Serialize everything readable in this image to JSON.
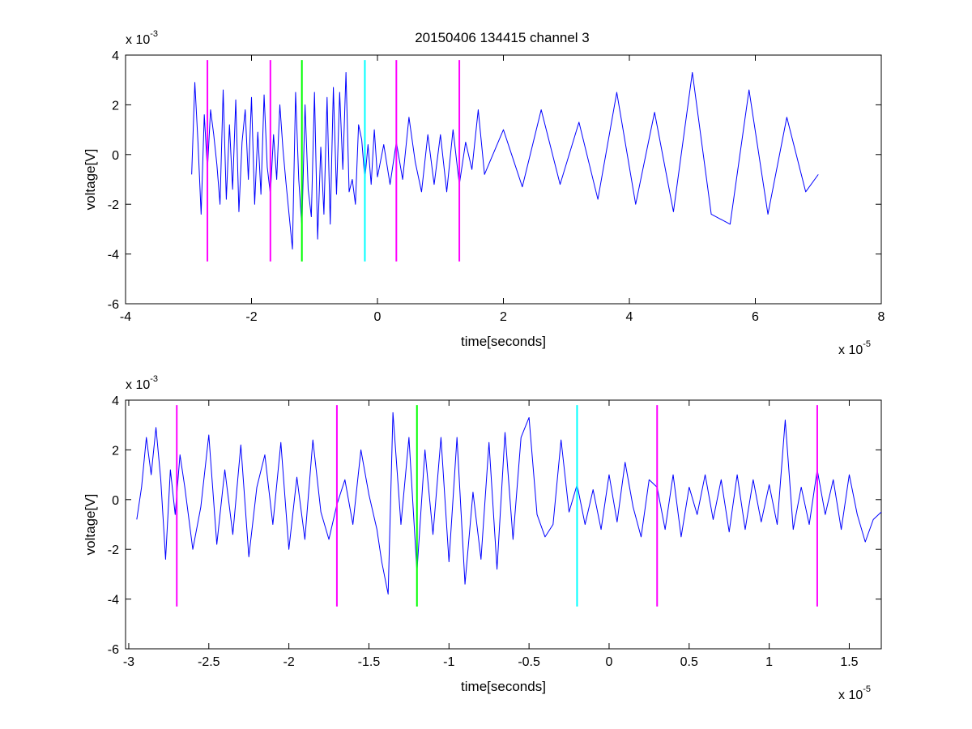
{
  "figure": {
    "title": "20150406 134415 channel 3"
  },
  "chart_data": [
    {
      "type": "line",
      "title": "20150406 134415 channel 3",
      "xlabel": "time[seconds]",
      "ylabel": "voltage[V]",
      "x_exponent_label": "x 10",
      "x_exponent": "-5",
      "y_exponent_label": "x 10",
      "y_exponent": "-3",
      "xlim": [
        -4,
        8
      ],
      "ylim": [
        -6,
        4
      ],
      "xticks": [
        -4,
        -2,
        0,
        2,
        4,
        6,
        8
      ],
      "yticks": [
        -6,
        -4,
        -2,
        0,
        2,
        4
      ],
      "xtick_labels": [
        "-4",
        "-2",
        "0",
        "2",
        "4",
        "6",
        "8"
      ],
      "ytick_labels": [
        "-6",
        "-4",
        "-2",
        "0",
        "2",
        "4"
      ],
      "grid": false,
      "series": [
        {
          "color": "#0000ff",
          "x": [
            -2.95,
            -2.9,
            -2.85,
            -2.8,
            -2.75,
            -2.7,
            -2.65,
            -2.6,
            -2.55,
            -2.5,
            -2.45,
            -2.4,
            -2.35,
            -2.3,
            -2.25,
            -2.2,
            -2.15,
            -2.1,
            -2.05,
            -2.0,
            -1.95,
            -1.9,
            -1.85,
            -1.8,
            -1.75,
            -1.7,
            -1.65,
            -1.6,
            -1.55,
            -1.5,
            -1.45,
            -1.4,
            -1.35,
            -1.3,
            -1.25,
            -1.2,
            -1.15,
            -1.1,
            -1.05,
            -1.0,
            -0.95,
            -0.9,
            -0.85,
            -0.8,
            -0.75,
            -0.7,
            -0.65,
            -0.6,
            -0.55,
            -0.5,
            -0.45,
            -0.4,
            -0.35,
            -0.3,
            -0.25,
            -0.2,
            -0.15,
            -0.1,
            -0.05,
            0.0,
            0.1,
            0.2,
            0.3,
            0.4,
            0.5,
            0.6,
            0.7,
            0.8,
            0.9,
            1.0,
            1.1,
            1.2,
            1.3,
            1.4,
            1.5,
            1.6,
            1.7,
            2.0,
            2.3,
            2.6,
            2.9,
            3.2,
            3.5,
            3.8,
            4.1,
            4.4,
            4.7,
            5.0,
            5.3,
            5.6,
            5.9,
            6.2,
            6.5,
            6.8,
            7.0
          ],
          "y": [
            -0.8,
            2.9,
            0.5,
            -2.4,
            1.6,
            -0.6,
            1.8,
            0.8,
            -0.4,
            -2.0,
            2.6,
            -1.8,
            1.2,
            -1.4,
            2.2,
            -2.3,
            0.5,
            1.8,
            -1.0,
            2.3,
            -2.0,
            0.9,
            -1.6,
            2.4,
            -0.5,
            -1.6,
            0.8,
            -1.0,
            2.0,
            0.2,
            -1.2,
            -2.5,
            -3.8,
            2.5,
            -1.0,
            -2.9,
            2.0,
            -1.4,
            -2.5,
            2.5,
            -3.4,
            0.3,
            -2.4,
            2.3,
            -2.8,
            2.7,
            -1.6,
            2.5,
            -0.6,
            3.3,
            -1.5,
            -1.0,
            -2.0,
            1.2,
            0.6,
            -1.0,
            0.4,
            -1.2,
            1.0,
            -0.9,
            0.4,
            -1.2,
            0.5,
            -1.0,
            1.5,
            -0.3,
            -1.5,
            0.8,
            -1.2,
            0.8,
            -1.5,
            1.0,
            -1.2,
            0.5,
            -0.6,
            1.8,
            -0.8,
            1.0,
            -1.3,
            1.8,
            -1.2,
            1.3,
            -1.8,
            2.5,
            -2.0,
            1.7,
            -2.3,
            3.3,
            -2.4,
            -2.8,
            2.6,
            -2.4,
            1.5,
            -1.5,
            -0.8
          ]
        },
        {
          "color": "#ff00ff",
          "x": [
            -2.7,
            -2.7
          ],
          "y": [
            -4.3,
            3.8
          ]
        },
        {
          "color": "#ff00ff",
          "x": [
            -1.7,
            -1.7
          ],
          "y": [
            -4.3,
            3.8
          ]
        },
        {
          "color": "#00ff00",
          "x": [
            -1.2,
            -1.2
          ],
          "y": [
            -4.3,
            3.8
          ]
        },
        {
          "color": "#00ffff",
          "x": [
            -0.2,
            -0.2
          ],
          "y": [
            -4.3,
            3.8
          ]
        },
        {
          "color": "#ff00ff",
          "x": [
            0.3,
            0.3
          ],
          "y": [
            -4.3,
            3.8
          ]
        },
        {
          "color": "#ff00ff",
          "x": [
            1.3,
            1.3
          ],
          "y": [
            -4.3,
            3.8
          ]
        }
      ]
    },
    {
      "type": "line",
      "title": "",
      "xlabel": "time[seconds]",
      "ylabel": "voltage[V]",
      "x_exponent_label": "x 10",
      "x_exponent": "-5",
      "y_exponent_label": "x 10",
      "y_exponent": "-3",
      "xlim": [
        -3.02,
        1.7
      ],
      "ylim": [
        -6,
        4
      ],
      "xticks": [
        -3,
        -2.5,
        -2,
        -1.5,
        -1,
        -0.5,
        0,
        0.5,
        1,
        1.5
      ],
      "yticks": [
        -6,
        -4,
        -2,
        0,
        2,
        4
      ],
      "xtick_labels": [
        "-3",
        "-2.5",
        "-2",
        "-1.5",
        "-1",
        "-0.5",
        "0",
        "0.5",
        "1",
        "1.5"
      ],
      "ytick_labels": [
        "-6",
        "-4",
        "-2",
        "0",
        "2",
        "4"
      ],
      "grid": false,
      "series": [
        {
          "color": "#0000ff",
          "x": [
            -2.95,
            -2.92,
            -2.89,
            -2.86,
            -2.83,
            -2.8,
            -2.77,
            -2.74,
            -2.71,
            -2.68,
            -2.65,
            -2.6,
            -2.55,
            -2.5,
            -2.45,
            -2.4,
            -2.35,
            -2.3,
            -2.25,
            -2.2,
            -2.15,
            -2.1,
            -2.05,
            -2.0,
            -1.95,
            -1.9,
            -1.85,
            -1.8,
            -1.75,
            -1.7,
            -1.65,
            -1.6,
            -1.55,
            -1.5,
            -1.45,
            -1.42,
            -1.38,
            -1.35,
            -1.3,
            -1.25,
            -1.2,
            -1.15,
            -1.1,
            -1.05,
            -1.0,
            -0.95,
            -0.9,
            -0.85,
            -0.8,
            -0.75,
            -0.7,
            -0.65,
            -0.6,
            -0.55,
            -0.5,
            -0.45,
            -0.4,
            -0.35,
            -0.3,
            -0.25,
            -0.2,
            -0.15,
            -0.1,
            -0.05,
            0.0,
            0.05,
            0.1,
            0.15,
            0.2,
            0.25,
            0.3,
            0.35,
            0.4,
            0.45,
            0.5,
            0.55,
            0.6,
            0.65,
            0.7,
            0.75,
            0.8,
            0.85,
            0.9,
            0.95,
            1.0,
            1.05,
            1.1,
            1.15,
            1.2,
            1.25,
            1.3,
            1.35,
            1.4,
            1.45,
            1.5,
            1.55,
            1.6,
            1.65,
            1.7
          ],
          "y": [
            -0.8,
            0.5,
            2.5,
            1.0,
            2.9,
            0.8,
            -2.4,
            1.2,
            -0.6,
            1.8,
            0.5,
            -2.0,
            -0.3,
            2.6,
            -1.8,
            1.2,
            -1.4,
            2.2,
            -2.3,
            0.5,
            1.8,
            -1.0,
            2.3,
            -2.0,
            0.9,
            -1.6,
            2.4,
            -0.5,
            -1.6,
            -0.2,
            0.8,
            -1.0,
            2.0,
            0.2,
            -1.2,
            -2.5,
            -3.8,
            3.5,
            -1.0,
            2.5,
            -2.9,
            2.0,
            -1.4,
            2.5,
            -2.5,
            2.5,
            -3.4,
            0.3,
            -2.4,
            2.3,
            -2.8,
            2.7,
            -1.6,
            2.5,
            3.3,
            -0.6,
            -1.5,
            -1.0,
            2.4,
            -0.5,
            0.6,
            -1.0,
            0.4,
            -1.2,
            1.0,
            -0.9,
            1.5,
            -0.3,
            -1.5,
            0.8,
            0.5,
            -1.2,
            1.0,
            -1.5,
            0.5,
            -0.6,
            1.0,
            -0.8,
            0.8,
            -1.3,
            1.0,
            -1.2,
            0.8,
            -0.9,
            0.6,
            -1.0,
            3.2,
            -1.2,
            0.5,
            -1.0,
            1.2,
            -0.6,
            0.8,
            -1.2,
            1.0,
            -0.6,
            -1.7,
            -0.8,
            -0.5
          ]
        },
        {
          "color": "#ff00ff",
          "x": [
            -2.7,
            -2.7
          ],
          "y": [
            -4.3,
            3.8
          ]
        },
        {
          "color": "#ff00ff",
          "x": [
            -1.7,
            -1.7
          ],
          "y": [
            -4.3,
            3.8
          ]
        },
        {
          "color": "#00ff00",
          "x": [
            -1.2,
            -1.2
          ],
          "y": [
            -4.3,
            3.8
          ]
        },
        {
          "color": "#00ffff",
          "x": [
            -0.2,
            -0.2
          ],
          "y": [
            -4.3,
            3.8
          ]
        },
        {
          "color": "#ff00ff",
          "x": [
            0.3,
            0.3
          ],
          "y": [
            -4.3,
            3.8
          ]
        },
        {
          "color": "#ff00ff",
          "x": [
            1.3,
            1.3
          ],
          "y": [
            -4.3,
            3.8
          ]
        }
      ]
    }
  ]
}
